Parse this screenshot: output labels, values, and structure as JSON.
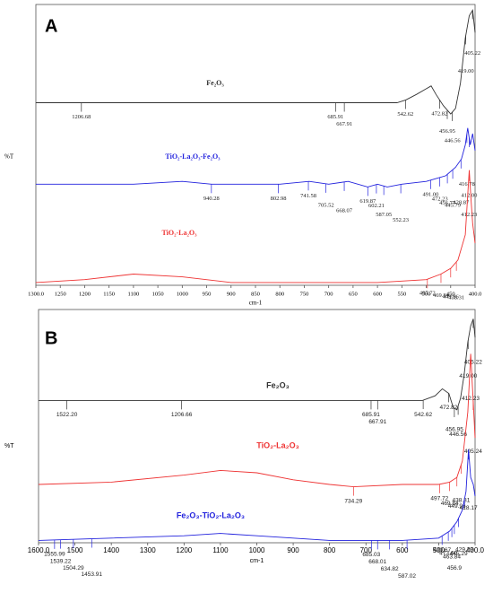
{
  "chart_data": [
    {
      "type": "line",
      "panel_label": "A",
      "xlabel": "cm-1",
      "ylabel": "%T",
      "xlim": [
        1300,
        400
      ],
      "ylim": [
        0,
        100
      ],
      "xticks": [
        {
          "value": 1300,
          "label": "1300.0"
        },
        {
          "value": 1250,
          "label": "1250"
        },
        {
          "value": 1200,
          "label": "1200"
        },
        {
          "value": 1150,
          "label": "1150"
        },
        {
          "value": 1100,
          "label": "1100"
        },
        {
          "value": 1050,
          "label": "1050"
        },
        {
          "value": 1000,
          "label": "1000"
        },
        {
          "value": 950,
          "label": "950"
        },
        {
          "value": 900,
          "label": "900"
        },
        {
          "value": 850,
          "label": "850"
        },
        {
          "value": 800,
          "label": "800"
        },
        {
          "value": 750,
          "label": "750"
        },
        {
          "value": 700,
          "label": "700"
        },
        {
          "value": 650,
          "label": "650"
        },
        {
          "value": 600,
          "label": "600"
        },
        {
          "value": 550,
          "label": "550"
        },
        {
          "value": 500,
          "label": "500"
        },
        {
          "value": 450,
          "label": "450"
        },
        {
          "value": 400,
          "label": "400.0"
        }
      ],
      "series": [
        {
          "name": "Fe₂O₃",
          "color": "#333333",
          "x": [
            1300,
            1200,
            1000,
            800,
            700,
            600,
            560,
            542,
            520,
            500,
            490,
            480,
            465,
            450,
            440,
            430,
            420,
            412,
            405,
            400
          ],
          "values": [
            65,
            65,
            65,
            65,
            65,
            65,
            65,
            66,
            68,
            70,
            71,
            68,
            64,
            61,
            63,
            72,
            88,
            96,
            98,
            90
          ],
          "peaks": [
            1206.68,
            685.91,
            667.91,
            542.62,
            472.82,
            456.95,
            446.56,
            {
              "value": 419,
              "label": "419.00"
            },
            405.22
          ]
        },
        {
          "name": "TiO₂-La₂O₃-Fe₂O₃",
          "color": "#2222dd",
          "x": [
            1300,
            1200,
            1100,
            1000,
            940,
            900,
            800,
            740,
            700,
            660,
            620,
            600,
            580,
            550,
            500,
            480,
            460,
            440,
            428,
            420,
            415,
            410,
            405,
            400
          ],
          "values": [
            36,
            36,
            36,
            37,
            36,
            36,
            36,
            37,
            36,
            37,
            35,
            36,
            35,
            36,
            37,
            38,
            39,
            42,
            45,
            50,
            56,
            50,
            54,
            48
          ],
          "peaks": [
            940.28,
            802.98,
            741.58,
            705.52,
            668.07,
            619.87,
            602.21,
            587.05,
            552.23,
            {
              "value": 491,
              "label": "491.00"
            },
            472.23,
            456.77,
            445.79,
            428.87,
            416.78,
            {
              "value": 412,
              "label": "412.00"
            }
          ]
        },
        {
          "name": "TiO₂-La₂O₃",
          "color": "#ee3333",
          "x": [
            1300,
            1200,
            1100,
            1000,
            900,
            800,
            700,
            600,
            500,
            470,
            450,
            435,
            420,
            412,
            408,
            405,
            400
          ],
          "values": [
            1,
            2,
            4,
            3,
            1,
            1,
            1,
            1,
            2,
            4,
            6,
            9,
            18,
            41,
            30,
            22,
            15
          ],
          "peaks": [
            497.72,
            469.84,
            449.96,
            438.31,
            412.23
          ]
        }
      ]
    },
    {
      "type": "line",
      "panel_label": "B",
      "xlabel": "cm-1",
      "ylabel": "%T",
      "xlim": [
        1600,
        400
      ],
      "ylim": [
        0,
        100
      ],
      "xticks": [
        {
          "value": 1600,
          "label": "1600.0"
        },
        1500,
        1400,
        1300,
        1200,
        1100,
        1000,
        900,
        800,
        700,
        600,
        500,
        {
          "value": 400,
          "label": "400.0"
        }
      ],
      "series": [
        {
          "name": "Fe₂O₃",
          "color": "#333333",
          "x": [
            1600,
            1500,
            1200,
            1000,
            800,
            700,
            600,
            545,
            510,
            490,
            472,
            460,
            450,
            440,
            430,
            420,
            412,
            405,
            400
          ],
          "values": [
            61,
            61,
            61,
            61,
            61,
            61,
            61,
            61,
            63,
            66,
            64,
            58,
            57,
            62,
            72,
            86,
            93,
            96,
            88
          ],
          "peaks": [
            {
              "value": 1522.2,
              "label": "1522.20"
            },
            1206.66,
            685.91,
            667.91,
            542.62,
            472.82,
            456.95,
            446.56,
            {
              "value": 419,
              "label": "419.00"
            },
            405.22
          ]
        },
        {
          "name": "TiO₂-La₂O₃",
          "color": "#ee3333",
          "x": [
            1600,
            1400,
            1200,
            1100,
            1000,
            900,
            800,
            734,
            600,
            500,
            470,
            450,
            435,
            420,
            412,
            405,
            400
          ],
          "values": [
            25,
            26,
            29,
            31,
            30,
            27,
            25,
            24,
            25,
            25,
            26,
            28,
            35,
            56,
            81,
            60,
            45
          ],
          "peaks": [
            734.29,
            497.72,
            469.84,
            449.96,
            438.31,
            412.23,
            405.24
          ]
        },
        {
          "name": "Fe₂O₃-TiO₂-La₂O₃",
          "color": "#2222dd",
          "x": [
            1600,
            1400,
            1200,
            1100,
            1000,
            900,
            800,
            700,
            600,
            500,
            470,
            450,
            435,
            425,
            418,
            412,
            405,
            400
          ],
          "values": [
            1,
            2,
            3,
            4,
            3,
            2,
            1,
            1,
            1,
            2,
            5,
            9,
            14,
            22,
            40,
            28,
            25,
            20
          ],
          "peaks": [
            1555.99,
            1539.22,
            1504.29,
            1453.91,
            685.03,
            668.01,
            634.82,
            587.02,
            490.67,
            {
              "value": 473.6,
              "label": "473.60"
            },
            463.84,
            445.29,
            456.9,
            429.29,
            418.17
          ]
        }
      ]
    }
  ]
}
